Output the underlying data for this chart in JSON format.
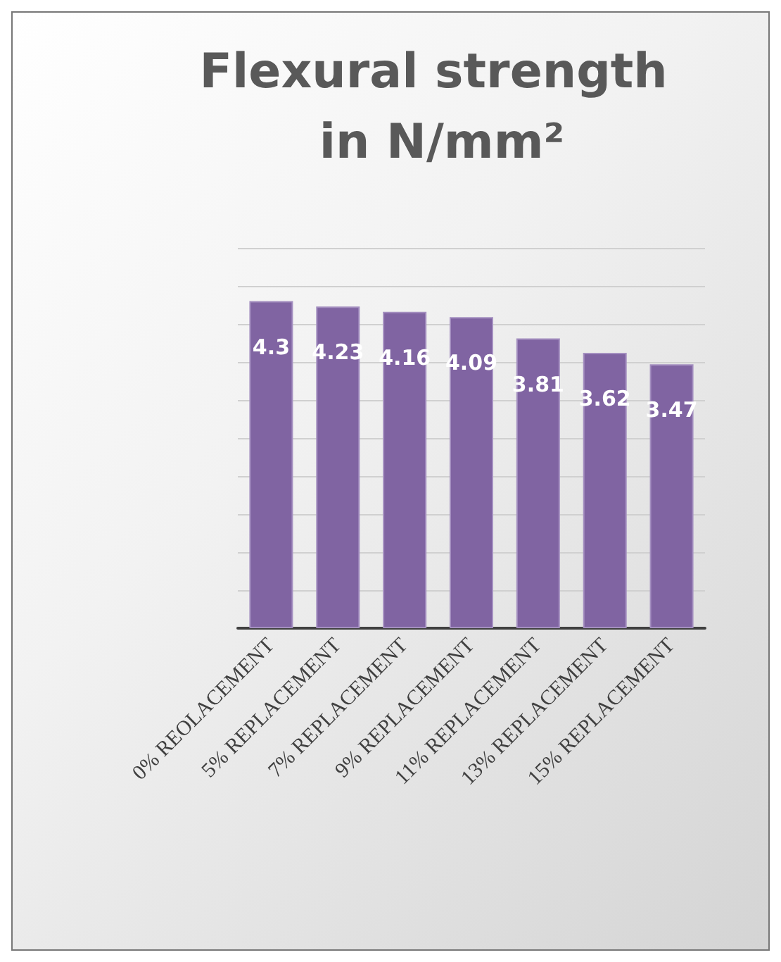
{
  "chart_data": {
    "type": "bar",
    "title": "Flexural strength in N/mm²",
    "categories": [
      "0% REOLACEMENT",
      "5% REPLACEMENT",
      "7% REPLACEMENT",
      "9% REPLACEMENT",
      "11% REPLACEMENT",
      "13% REPLACEMENT",
      "15% REPLACEMENT"
    ],
    "values": [
      4.3,
      4.23,
      4.16,
      4.09,
      3.81,
      3.62,
      3.47
    ],
    "color": "#8064a2",
    "ylim": [
      0,
      5
    ],
    "yticks": [
      {
        "value": 0,
        "label": null
      },
      {
        "value": 0.5,
        "label": null
      },
      {
        "value": 1,
        "label": null
      },
      {
        "value": 1.5,
        "label": null
      },
      {
        "value": 2,
        "label": null
      },
      {
        "value": 2.5,
        "label": null
      },
      {
        "value": 3,
        "label": null
      },
      {
        "value": 3.5,
        "label": null
      },
      {
        "value": 4,
        "label": null
      },
      {
        "value": 4.5,
        "label": null
      },
      {
        "value": 5,
        "label": null
      }
    ],
    "tick_labels": "x",
    "grid": "y",
    "data_labels": true
  }
}
